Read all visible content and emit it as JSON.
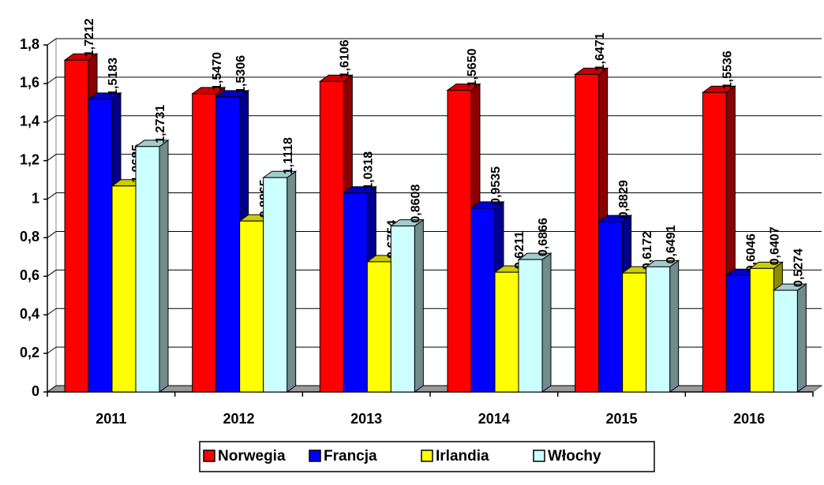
{
  "chart_data": {
    "type": "bar3d",
    "categories": [
      "2011",
      "2012",
      "2013",
      "2014",
      "2015",
      "2016"
    ],
    "series": [
      {
        "name": "Norwegia",
        "color": "#ff0000",
        "values": [
          1.7212,
          1.547,
          1.6106,
          1.565,
          1.6471,
          1.5536
        ],
        "value_labels": [
          "1,7212",
          "1,5470",
          "1,6106",
          "1,5650",
          "1,6471",
          "1,5536"
        ]
      },
      {
        "name": "Francja",
        "color": "#0000ff",
        "values": [
          1.5183,
          1.5306,
          1.0318,
          0.9535,
          0.8829,
          0.6046
        ],
        "value_labels": [
          "1,5183",
          "1,5306",
          "1,0318",
          "0,9535",
          "0,8829",
          "0,6046"
        ]
      },
      {
        "name": "Irlandia",
        "color": "#ffff00",
        "values": [
          1.0685,
          0.8865,
          0.6754,
          0.6211,
          0.6172,
          0.6407
        ],
        "value_labels": [
          "1,0685",
          "0,8865",
          "0,6754",
          "0,6211",
          "0,6172",
          "0,6407"
        ]
      },
      {
        "name": "Włochy",
        "color": "#ccffff",
        "values": [
          1.2731,
          1.1118,
          0.8608,
          0.6866,
          0.6491,
          0.5274
        ],
        "value_labels": [
          "1,2731",
          "1,1118",
          "0,8608",
          "0,6866",
          "0,6491",
          "0,5274"
        ]
      }
    ],
    "ylim": [
      0,
      1.8
    ],
    "yticks": [
      0,
      {
        "value": 0.2,
        "label": "0,2"
      },
      {
        "value": 0.4,
        "label": "0,4"
      },
      {
        "value": 0.6,
        "label": "0,6"
      },
      {
        "value": 0.8,
        "label": "0,8"
      },
      1,
      {
        "value": 1.2,
        "label": "1,2"
      },
      {
        "value": 1.4,
        "label": "1,4"
      },
      {
        "value": 1.6,
        "label": "1,6"
      },
      {
        "value": 1.8,
        "label": "1,8"
      }
    ],
    "grid": true,
    "legend": "bottom"
  }
}
